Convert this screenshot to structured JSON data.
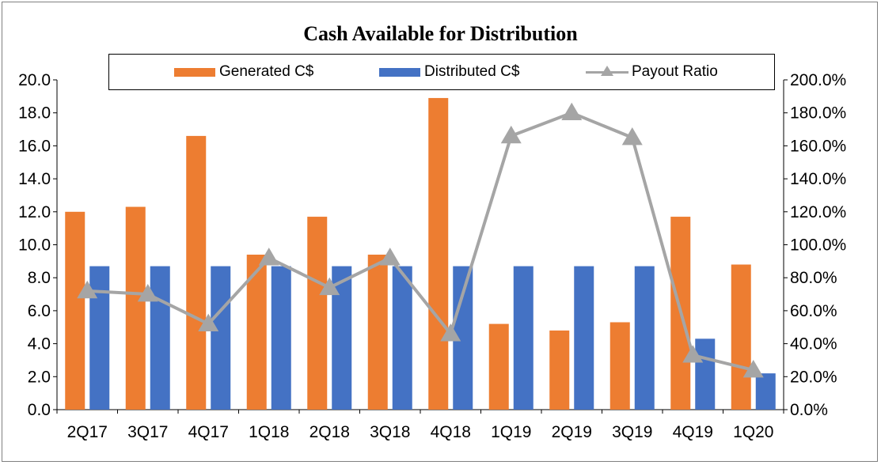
{
  "chart_data": {
    "type": "bar",
    "title": "Cash Available for Distribution",
    "categories": [
      "2Q17",
      "3Q17",
      "4Q17",
      "1Q18",
      "2Q18",
      "3Q18",
      "4Q18",
      "1Q19",
      "2Q19",
      "3Q19",
      "4Q19",
      "1Q20"
    ],
    "series": [
      {
        "name": "Generated C$",
        "type": "bar",
        "axis": "left",
        "color": "#ed7d31",
        "values": [
          12.0,
          12.3,
          16.6,
          9.4,
          11.7,
          9.4,
          18.9,
          5.2,
          4.8,
          5.3,
          11.7,
          8.8
        ]
      },
      {
        "name": "Distributed C$",
        "type": "bar",
        "axis": "left",
        "color": "#4472c4",
        "values": [
          8.7,
          8.7,
          8.7,
          8.7,
          8.7,
          8.7,
          8.7,
          8.7,
          8.7,
          8.7,
          4.3,
          2.2
        ]
      },
      {
        "name": "Payout Ratio",
        "type": "line",
        "axis": "right",
        "marker": "triangle",
        "color": "#a5a5a5",
        "values": [
          72,
          70,
          52,
          92,
          74,
          92,
          46,
          166,
          180,
          165,
          33,
          24
        ]
      }
    ],
    "ylim": [
      0,
      20
    ],
    "ylim_right": [
      0,
      200
    ],
    "yticks_left": [
      "20.0",
      "18.0",
      "16.0",
      "14.0",
      "12.0",
      "10.0",
      "8.0",
      "6.0",
      "4.0",
      "2.0",
      "0.0"
    ],
    "yticks_right": [
      "200.0%",
      "180.0%",
      "160.0%",
      "140.0%",
      "120.0%",
      "100.0%",
      "80.0%",
      "60.0%",
      "40.0%",
      "20.0%",
      "0.0%"
    ],
    "xlabel": "",
    "ylabel": "",
    "legend_position": "top",
    "grid": false
  }
}
